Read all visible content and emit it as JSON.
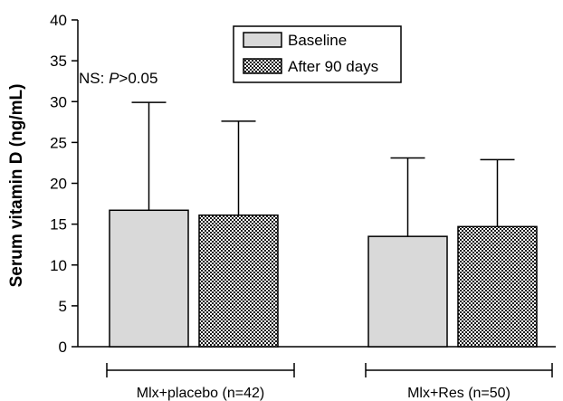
{
  "chart_data": {
    "type": "bar",
    "ylabel": "Serum vitamin D (ng/mL)",
    "xlabel": "",
    "ylim": [
      0,
      40
    ],
    "y_ticks": [
      "0",
      "5",
      "10",
      "15",
      "20",
      "25",
      "30",
      "35",
      "40"
    ],
    "categories": [
      "Mlx+placebo (n=42)",
      "Mlx+Res (n=50)"
    ],
    "series": [
      {
        "name": "Baseline",
        "fill": "#d9d9d9",
        "pattern": "solid",
        "values": [
          16.7,
          13.5
        ],
        "error_upper": [
          29.9,
          23.1
        ]
      },
      {
        "name": "After 90 days",
        "fill": "#000000",
        "pattern": "checkerboard",
        "values": [
          16.1,
          14.7
        ],
        "error_upper": [
          27.6,
          22.9
        ]
      }
    ],
    "annotation": {
      "prefix": "NS: ",
      "italic": "P",
      "suffix": ">0.05"
    },
    "legend_position": "top-center",
    "grid": false
  }
}
